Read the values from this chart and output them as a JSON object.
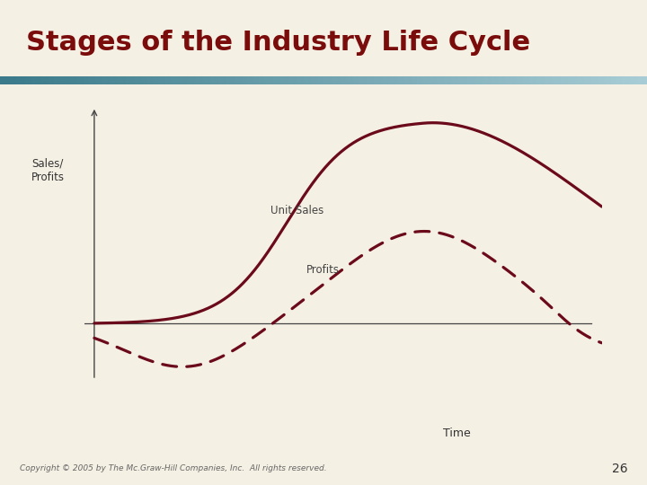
{
  "title": "Stages of the Industry Life Cycle",
  "title_color": "#7B0C0C",
  "title_fontsize": 22,
  "background_color": "#F5F0E4",
  "curve_color": "#6B0A1A",
  "ylabel": "Sales/\nProfits",
  "xlabel": "Time",
  "unit_sales_label": "Unit Sales",
  "profits_label": "Profits",
  "footer": "Copyright © 2005 by The Mc.Graw-Hill Companies, Inc.  All rights reserved.",
  "page_number": "26",
  "divider_color_left": "#3A7A8A",
  "divider_color_right": "#A8CDD6"
}
